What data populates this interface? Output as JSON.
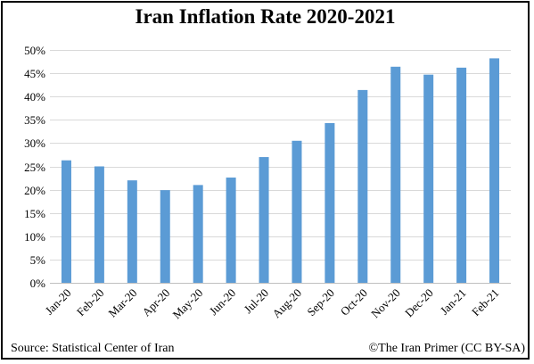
{
  "chart_data": {
    "type": "bar",
    "title": "Iran Inflation Rate 2020-2021",
    "categories": [
      "Jan-20",
      "Feb-20",
      "Mar-20",
      "Apr-20",
      "May-20",
      "Jun-20",
      "Jul-20",
      "Aug-20",
      "Sep-20",
      "Oct-20",
      "Nov-20",
      "Dec-20",
      "Jan-21",
      "Feb-21"
    ],
    "values": [
      26.3,
      25.0,
      22.0,
      19.9,
      21.0,
      22.6,
      27.0,
      30.5,
      34.3,
      41.4,
      46.4,
      44.7,
      46.2,
      48.2
    ],
    "ylim": [
      0,
      50
    ],
    "yticks": [
      "0%",
      "5%",
      "10%",
      "15%",
      "20%",
      "25%",
      "30%",
      "35%",
      "40%",
      "45%",
      "50%"
    ],
    "xlabel": "",
    "ylabel": "",
    "grid": true,
    "bar_color": "#5B9BD5",
    "grid_color": "#D9D9D9"
  },
  "footer": {
    "source": "Source: Statistical  Center of Iran",
    "credit": "©The Iran Primer (CC BY-SA)"
  }
}
